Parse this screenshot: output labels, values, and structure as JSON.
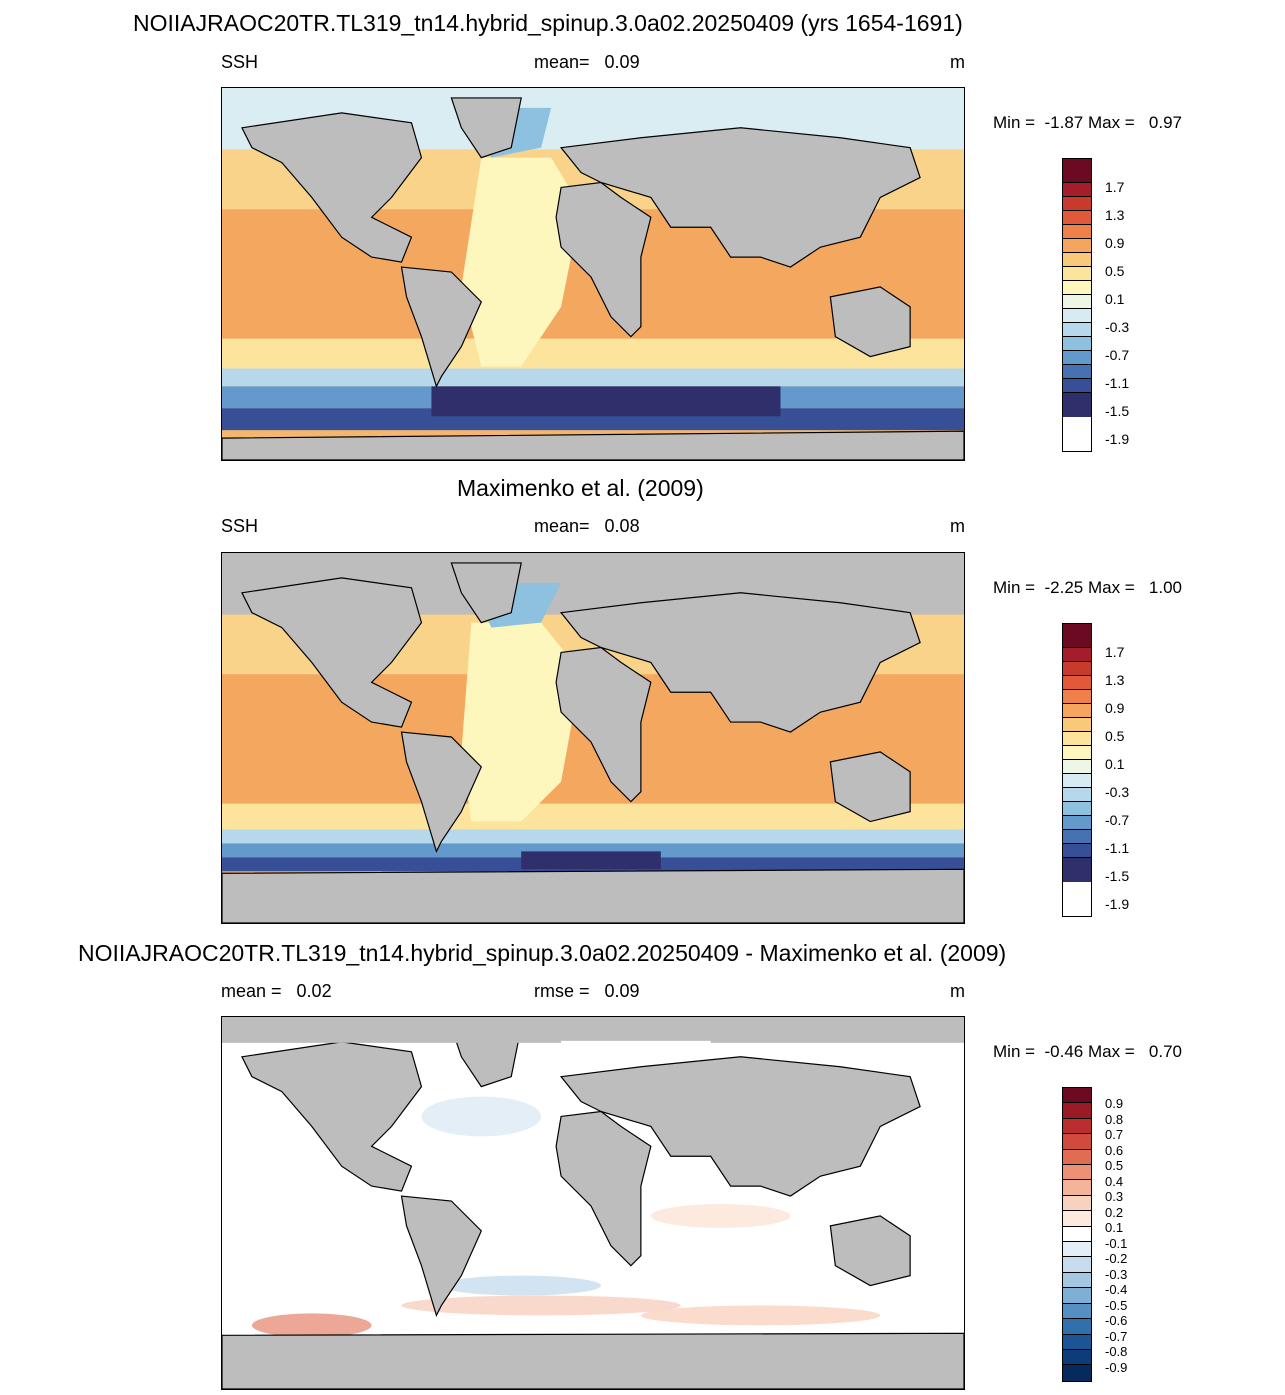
{
  "panel1": {
    "title": "NOIIAJRAOC20TR.TL319_tn14.hybrid_spinup.3.0a02.20250409 (yrs 1654-1691)",
    "left": "SSH",
    "center": "mean=   0.09",
    "right": "m",
    "minmax": "Min =  -1.87 Max =   0.97",
    "labels": [
      "1.7",
      "1.3",
      "0.9",
      "0.5",
      "0.1",
      "-0.3",
      "-0.7",
      "-1.1",
      "-1.5",
      "-1.9"
    ]
  },
  "panel2": {
    "title": "Maximenko et al. (2009)",
    "left": "SSH",
    "center": "mean=   0.08",
    "right": "m",
    "minmax": "Min =  -2.25 Max =   1.00",
    "labels": [
      "1.7",
      "1.3",
      "0.9",
      "0.5",
      "0.1",
      "-0.3",
      "-0.7",
      "-1.1",
      "-1.5",
      "-1.9"
    ]
  },
  "panel3": {
    "title": "NOIIAJRAOC20TR.TL319_tn14.hybrid_spinup.3.0a02.20250409 - Maximenko et al. (2009)",
    "left": "mean =   0.02",
    "center": "rmse =   0.09",
    "right": "m",
    "minmax": "Min =  -0.46 Max =   0.70",
    "labels": [
      "0.9",
      "0.8",
      "0.7",
      "0.6",
      "0.5",
      "0.4",
      "0.3",
      "0.2",
      "0.1",
      "-0.1",
      "-0.2",
      "-0.3",
      "-0.4",
      "-0.5",
      "-0.6",
      "-0.7",
      "-0.8",
      "-0.9"
    ]
  },
  "colors": {
    "land": "#bdbdbd",
    "ssh_scale": [
      "#6b0a20",
      "#a51c2a",
      "#c83a2c",
      "#e2593a",
      "#f08049",
      "#f6a55e",
      "#f9c97a",
      "#fce49c",
      "#fdf6bd",
      "#eef7e6",
      "#d7ecf2",
      "#b6d8ea",
      "#8dc1df",
      "#6499cc",
      "#4772b2",
      "#374f97",
      "#2e2f6b"
    ],
    "diff_scale": [
      "#6b0a20",
      "#9b1a28",
      "#bc2d30",
      "#d24a3e",
      "#e06d52",
      "#ec9174",
      "#f4b49a",
      "#f9d2bf",
      "#fdeadf",
      "#ffffff",
      "#e3eef7",
      "#c7ddee",
      "#a4c8e2",
      "#7eafd4",
      "#5690c3",
      "#3270ad",
      "#1c5596",
      "#0d3d79",
      "#062a5e"
    ]
  }
}
